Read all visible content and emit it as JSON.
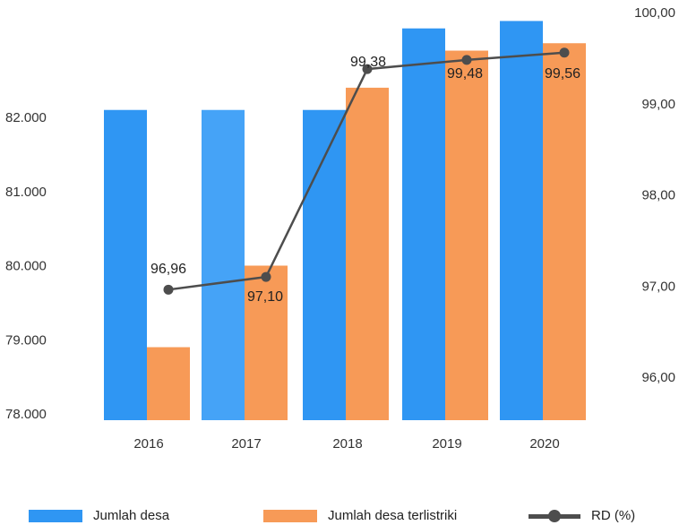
{
  "chart_data": {
    "type": "bar",
    "categories": [
      "2016",
      "2017",
      "2018",
      "2019",
      "2020"
    ],
    "series": [
      {
        "name": "Jumlah desa",
        "type": "bar",
        "axis": "left",
        "color": "#2f96f3",
        "values": [
          82.1,
          82.1,
          82.1,
          83.2,
          83.3
        ]
      },
      {
        "name": "Jumlah desa terlistriki",
        "type": "bar",
        "axis": "left",
        "color": "#f79a57",
        "values": [
          78.9,
          80.0,
          82.4,
          82.9,
          83.0
        ]
      },
      {
        "name": "RD (%)",
        "type": "line",
        "axis": "right",
        "color": "#4d4d4d",
        "values": [
          96.96,
          97.1,
          99.38,
          99.48,
          99.56
        ],
        "labels": [
          "96,96",
          "97,10",
          "99,38",
          "99,48",
          "99,56"
        ]
      }
    ],
    "y_left": {
      "ticks": [
        78000,
        79000,
        80000,
        81000,
        82000
      ],
      "tick_labels": [
        "78.000",
        "79.000",
        "80.000",
        "81.000",
        "82.000"
      ]
    },
    "y_right": {
      "ticks": [
        96,
        97,
        98,
        99,
        100
      ],
      "tick_labels": [
        "96,00",
        "97,00",
        "98,00",
        "99,00",
        "100,00"
      ]
    },
    "legend_position": "bottom",
    "grid": false,
    "title": "",
    "xlabel": "",
    "ylabel": ""
  },
  "legend": {
    "desa": "Jumlah desa",
    "terlistriki": "Jumlah desa terlistriki",
    "rd": "RD (%)"
  }
}
